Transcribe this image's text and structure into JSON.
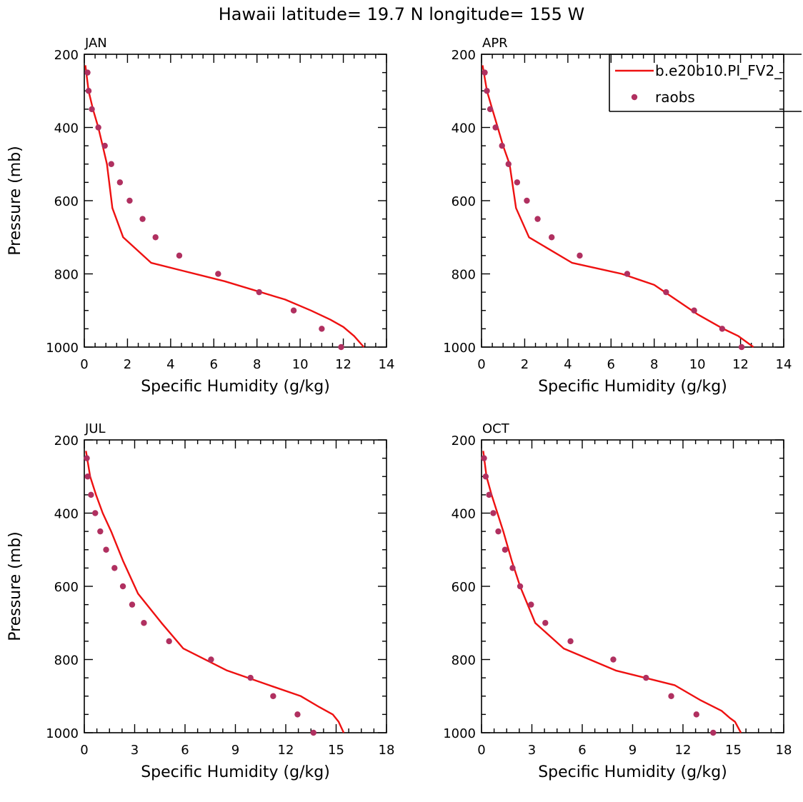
{
  "figure": {
    "title": "Hawaii  latitude= 19.7 N longitude= 155 W",
    "colors": {
      "model": "#ee1111",
      "obs": "#b03060",
      "axes": "#000000"
    }
  },
  "chart_data": [
    {
      "type": "line",
      "panel_label": "JAN",
      "xlabel": "Specific Humidity (g/kg)",
      "ylabel": "Pressure (mb)",
      "xlim": [
        0,
        14
      ],
      "ylim": [
        200,
        1000
      ],
      "y_inverted": true,
      "xticks": [
        0,
        2,
        4,
        6,
        8,
        10,
        12,
        14
      ],
      "yticks": [
        200,
        400,
        600,
        800,
        1000
      ],
      "series": [
        {
          "name": "b.e20b10.PI_FV2_",
          "style": "line",
          "x": [
            0.05,
            0.2,
            0.4,
            0.65,
            0.85,
            1.05,
            1.3,
            1.8,
            3.1,
            6.5,
            9.3,
            10.5,
            11.4,
            12.0,
            12.5,
            12.95
          ],
          "y": [
            230,
            300,
            350,
            400,
            450,
            500,
            620,
            700,
            770,
            820,
            870,
            900,
            925,
            945,
            970,
            1000
          ]
        },
        {
          "name": "raobs",
          "style": "markers",
          "x": [
            0.15,
            0.2,
            0.35,
            0.65,
            0.95,
            1.25,
            1.65,
            2.1,
            2.7,
            3.3,
            4.4,
            6.2,
            8.1,
            9.7,
            11.0,
            11.9
          ],
          "y": [
            250,
            300,
            350,
            400,
            450,
            500,
            550,
            600,
            650,
            700,
            750,
            800,
            850,
            900,
            950,
            1000
          ]
        }
      ]
    },
    {
      "type": "line",
      "panel_label": "APR",
      "xlabel": "Specific Humidity (g/kg)",
      "ylabel": "",
      "xlim": [
        0,
        14
      ],
      "ylim": [
        200,
        1000
      ],
      "y_inverted": true,
      "xticks": [
        0,
        2,
        4,
        6,
        8,
        10,
        12,
        14
      ],
      "yticks": [
        200,
        400,
        600,
        800,
        1000
      ],
      "legend": {
        "placement": "top-right",
        "entries": [
          "b.e20b10.PI_FV2_",
          "raobs"
        ]
      },
      "series": [
        {
          "name": "b.e20b10.PI_FV2_",
          "style": "line",
          "x": [
            0.05,
            0.25,
            0.5,
            0.75,
            1.0,
            1.3,
            1.6,
            2.2,
            4.2,
            6.5,
            8.0,
            9.0,
            10.0,
            11.2,
            11.9,
            12.6
          ],
          "y": [
            230,
            300,
            350,
            400,
            450,
            500,
            620,
            700,
            770,
            800,
            830,
            870,
            910,
            950,
            970,
            1000
          ]
        },
        {
          "name": "raobs",
          "style": "markers",
          "x": [
            0.15,
            0.25,
            0.4,
            0.65,
            0.95,
            1.25,
            1.65,
            2.1,
            2.6,
            3.25,
            4.55,
            6.75,
            8.55,
            9.85,
            11.15,
            12.05
          ],
          "y": [
            250,
            300,
            350,
            400,
            450,
            500,
            550,
            600,
            650,
            700,
            750,
            800,
            850,
            900,
            950,
            1000
          ]
        }
      ]
    },
    {
      "type": "line",
      "panel_label": "JUL",
      "xlabel": "Specific Humidity (g/kg)",
      "ylabel": "Pressure (mb)",
      "xlim": [
        0,
        18
      ],
      "ylim": [
        200,
        1000
      ],
      "y_inverted": true,
      "xticks": [
        0,
        3,
        6,
        9,
        12,
        15,
        18
      ],
      "yticks": [
        200,
        400,
        600,
        800,
        1000
      ],
      "series": [
        {
          "name": "b.e20b10.PI_FV2_",
          "style": "line",
          "x": [
            0.1,
            0.35,
            0.7,
            1.1,
            1.6,
            2.3,
            3.2,
            4.6,
            5.9,
            8.5,
            11.0,
            12.9,
            14.0,
            14.8,
            15.15,
            15.45
          ],
          "y": [
            230,
            300,
            350,
            400,
            450,
            530,
            620,
            700,
            770,
            830,
            870,
            900,
            930,
            950,
            970,
            1000
          ]
        },
        {
          "name": "raobs",
          "style": "markers",
          "x": [
            0.15,
            0.2,
            0.4,
            0.65,
            0.95,
            1.3,
            1.8,
            2.3,
            2.85,
            3.55,
            5.05,
            7.55,
            9.9,
            11.25,
            12.7,
            13.65
          ],
          "y": [
            250,
            300,
            350,
            400,
            450,
            500,
            550,
            600,
            650,
            700,
            750,
            800,
            850,
            900,
            950,
            1000
          ]
        }
      ]
    },
    {
      "type": "line",
      "panel_label": "OCT",
      "xlabel": "Specific Humidity (g/kg)",
      "ylabel": "",
      "xlim": [
        0,
        18
      ],
      "ylim": [
        200,
        1000
      ],
      "y_inverted": true,
      "xticks": [
        0,
        3,
        6,
        9,
        12,
        15,
        18
      ],
      "yticks": [
        200,
        400,
        600,
        800,
        1000
      ],
      "series": [
        {
          "name": "b.e20b10.PI_FV2_",
          "style": "line",
          "x": [
            0.1,
            0.3,
            0.6,
            0.95,
            1.3,
            1.8,
            2.3,
            3.2,
            4.9,
            8.0,
            11.5,
            13.0,
            14.3,
            14.8,
            15.1,
            15.45
          ],
          "y": [
            230,
            300,
            350,
            400,
            450,
            530,
            600,
            700,
            770,
            830,
            870,
            910,
            940,
            960,
            970,
            1000
          ]
        },
        {
          "name": "raobs",
          "style": "markers",
          "x": [
            0.15,
            0.25,
            0.45,
            0.7,
            1.0,
            1.4,
            1.85,
            2.3,
            2.95,
            3.8,
            5.3,
            7.85,
            9.8,
            11.3,
            12.8,
            13.8
          ],
          "y": [
            250,
            300,
            350,
            400,
            450,
            500,
            550,
            600,
            650,
            700,
            750,
            800,
            850,
            900,
            950,
            1000
          ]
        }
      ]
    }
  ]
}
